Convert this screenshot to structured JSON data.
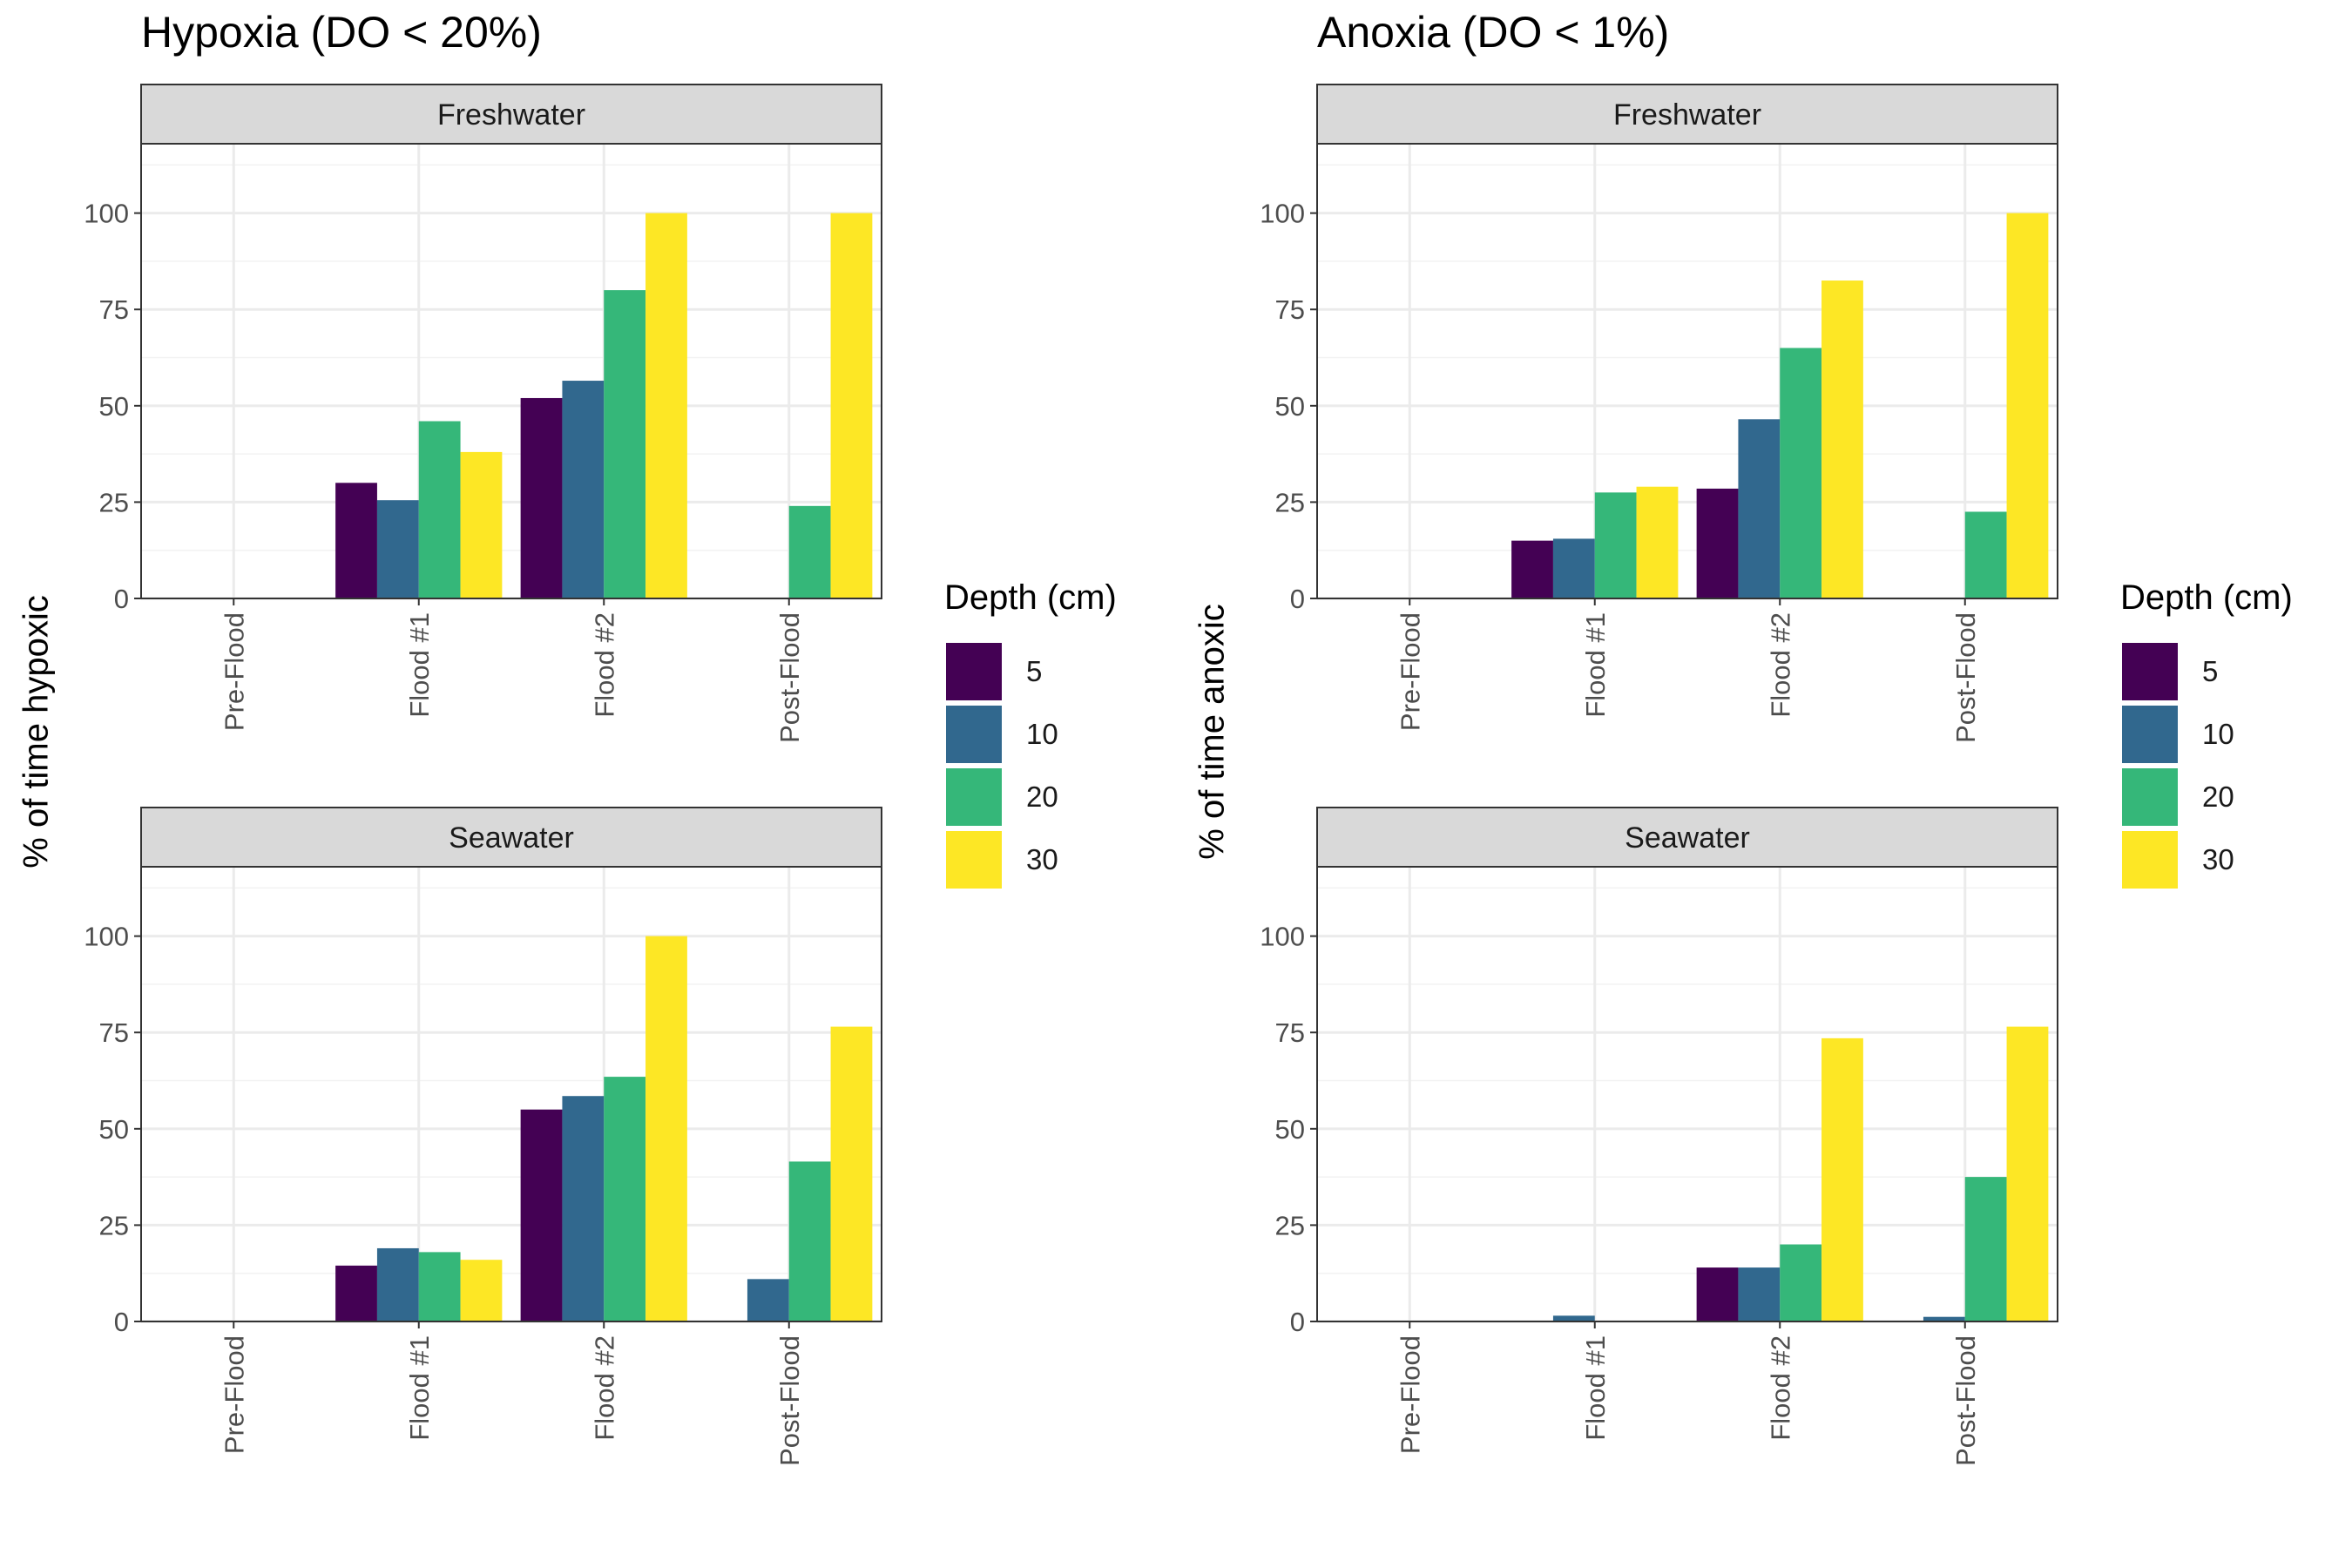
{
  "colors": {
    "depth_5": "#440154",
    "depth_10": "#31688E",
    "depth_20": "#35B779",
    "depth_30": "#FDE725",
    "strip_bg": "#D9D9D9",
    "grid": "#EBEBEB"
  },
  "legend": {
    "title": "Depth (cm)",
    "items": [
      "5",
      "10",
      "20",
      "30"
    ]
  },
  "chart_data": [
    {
      "type": "bar",
      "title": "Hypoxia (DO < 20%)",
      "ylabel": "% of time hypoxic",
      "xlabel": "",
      "categories": [
        "Pre-Flood",
        "Flood #1",
        "Flood #2",
        "Post-Flood"
      ],
      "ylim": [
        0,
        118
      ],
      "yticks": [
        "0",
        "25",
        "50",
        "75",
        "100"
      ],
      "legend_position": "right",
      "grid": true,
      "facets": [
        {
          "strip": "Freshwater",
          "series": [
            {
              "name": "5",
              "values": [
                null,
                30,
                52,
                null
              ]
            },
            {
              "name": "10",
              "values": [
                null,
                25.5,
                56.5,
                null
              ]
            },
            {
              "name": "20",
              "values": [
                null,
                46,
                80,
                24
              ]
            },
            {
              "name": "30",
              "values": [
                null,
                38,
                100,
                100
              ]
            }
          ]
        },
        {
          "strip": "Seawater",
          "series": [
            {
              "name": "5",
              "values": [
                null,
                14.5,
                55,
                null
              ]
            },
            {
              "name": "10",
              "values": [
                null,
                19,
                58.5,
                11
              ]
            },
            {
              "name": "20",
              "values": [
                null,
                18,
                63.5,
                41.5
              ]
            },
            {
              "name": "30",
              "values": [
                null,
                16,
                100,
                76.5
              ]
            }
          ]
        }
      ]
    },
    {
      "type": "bar",
      "title": "Anoxia (DO < 1%)",
      "ylabel": "% of time anoxic",
      "xlabel": "",
      "categories": [
        "Pre-Flood",
        "Flood #1",
        "Flood #2",
        "Post-Flood"
      ],
      "ylim": [
        0,
        118
      ],
      "yticks": [
        "0",
        "25",
        "50",
        "75",
        "100"
      ],
      "legend_position": "right",
      "grid": true,
      "facets": [
        {
          "strip": "Freshwater",
          "series": [
            {
              "name": "5",
              "values": [
                null,
                15,
                28.5,
                null
              ]
            },
            {
              "name": "10",
              "values": [
                null,
                15.5,
                46.5,
                null
              ]
            },
            {
              "name": "20",
              "values": [
                null,
                27.5,
                65,
                22.5
              ]
            },
            {
              "name": "30",
              "values": [
                null,
                29,
                82.5,
                100
              ]
            }
          ]
        },
        {
          "strip": "Seawater",
          "series": [
            {
              "name": "5",
              "values": [
                null,
                null,
                14,
                null
              ]
            },
            {
              "name": "10",
              "values": [
                null,
                1.5,
                14,
                1.2
              ]
            },
            {
              "name": "20",
              "values": [
                null,
                null,
                20,
                37.5
              ]
            },
            {
              "name": "30",
              "values": [
                null,
                null,
                73.5,
                76.5
              ]
            }
          ]
        }
      ]
    }
  ]
}
